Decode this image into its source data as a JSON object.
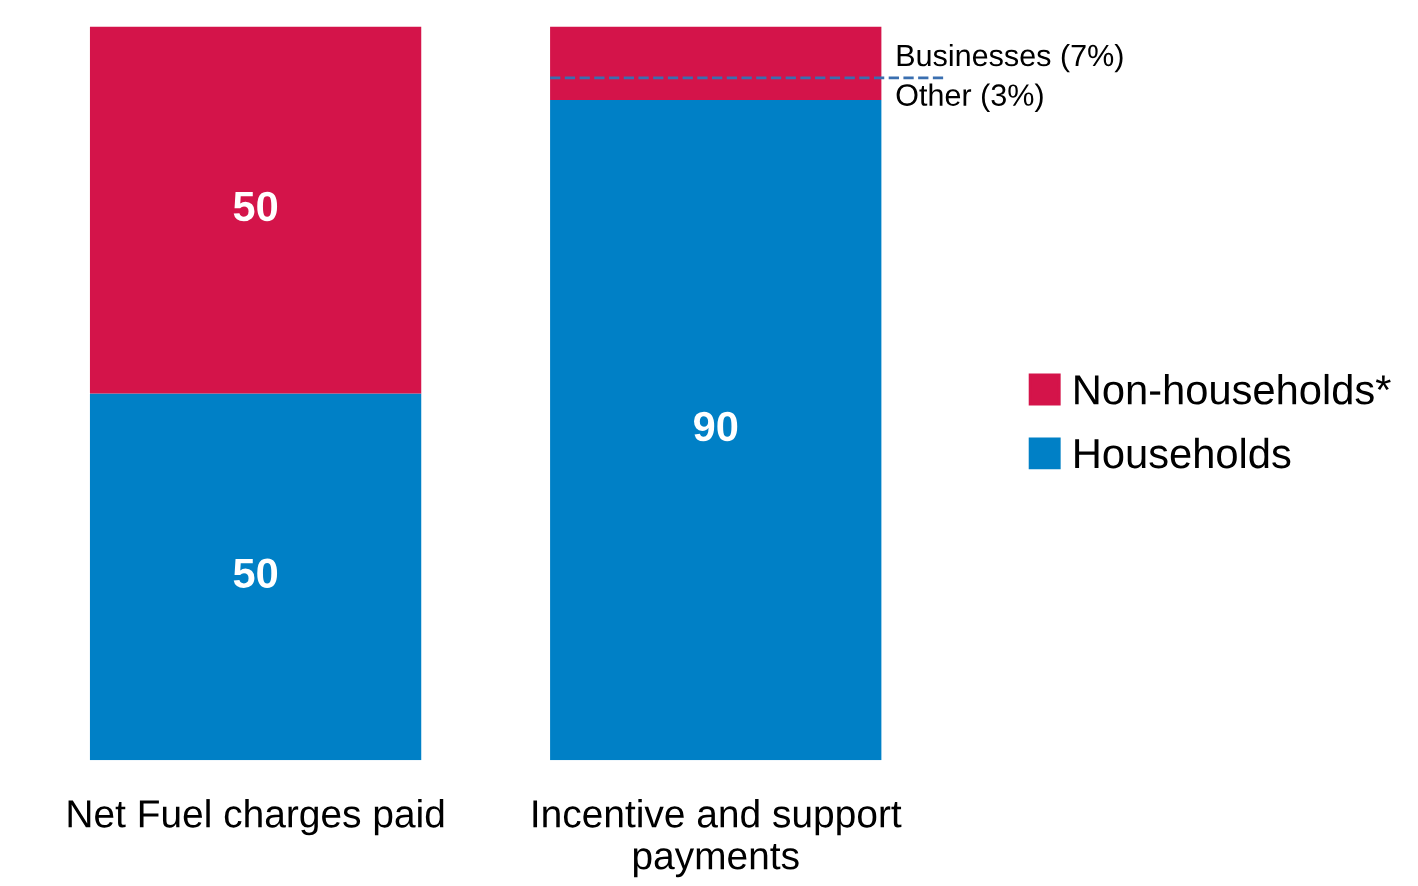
{
  "chart_data": {
    "type": "bar",
    "stacked": true,
    "categories": [
      "Net Fuel charges paid",
      "Incentive and support\npayments"
    ],
    "series": [
      {
        "name": "Households",
        "color": "#0080c6",
        "values": [
          50,
          90
        ],
        "value_labels": [
          "50",
          "90"
        ]
      },
      {
        "name": "Non-households*",
        "color": "#d4144a",
        "values": [
          50,
          10
        ],
        "value_labels": [
          "50",
          null
        ]
      }
    ],
    "ylim": [
      0,
      100
    ],
    "tick_labels": "x",
    "grid": false,
    "legend": "right",
    "ref_lines": [
      {
        "axis": "y",
        "value": 93,
        "label": null,
        "color": "#3a6fb0",
        "line_style": "dashed"
      }
    ],
    "annotations": [
      "Businesses (7%)",
      "Other (3%)"
    ]
  }
}
